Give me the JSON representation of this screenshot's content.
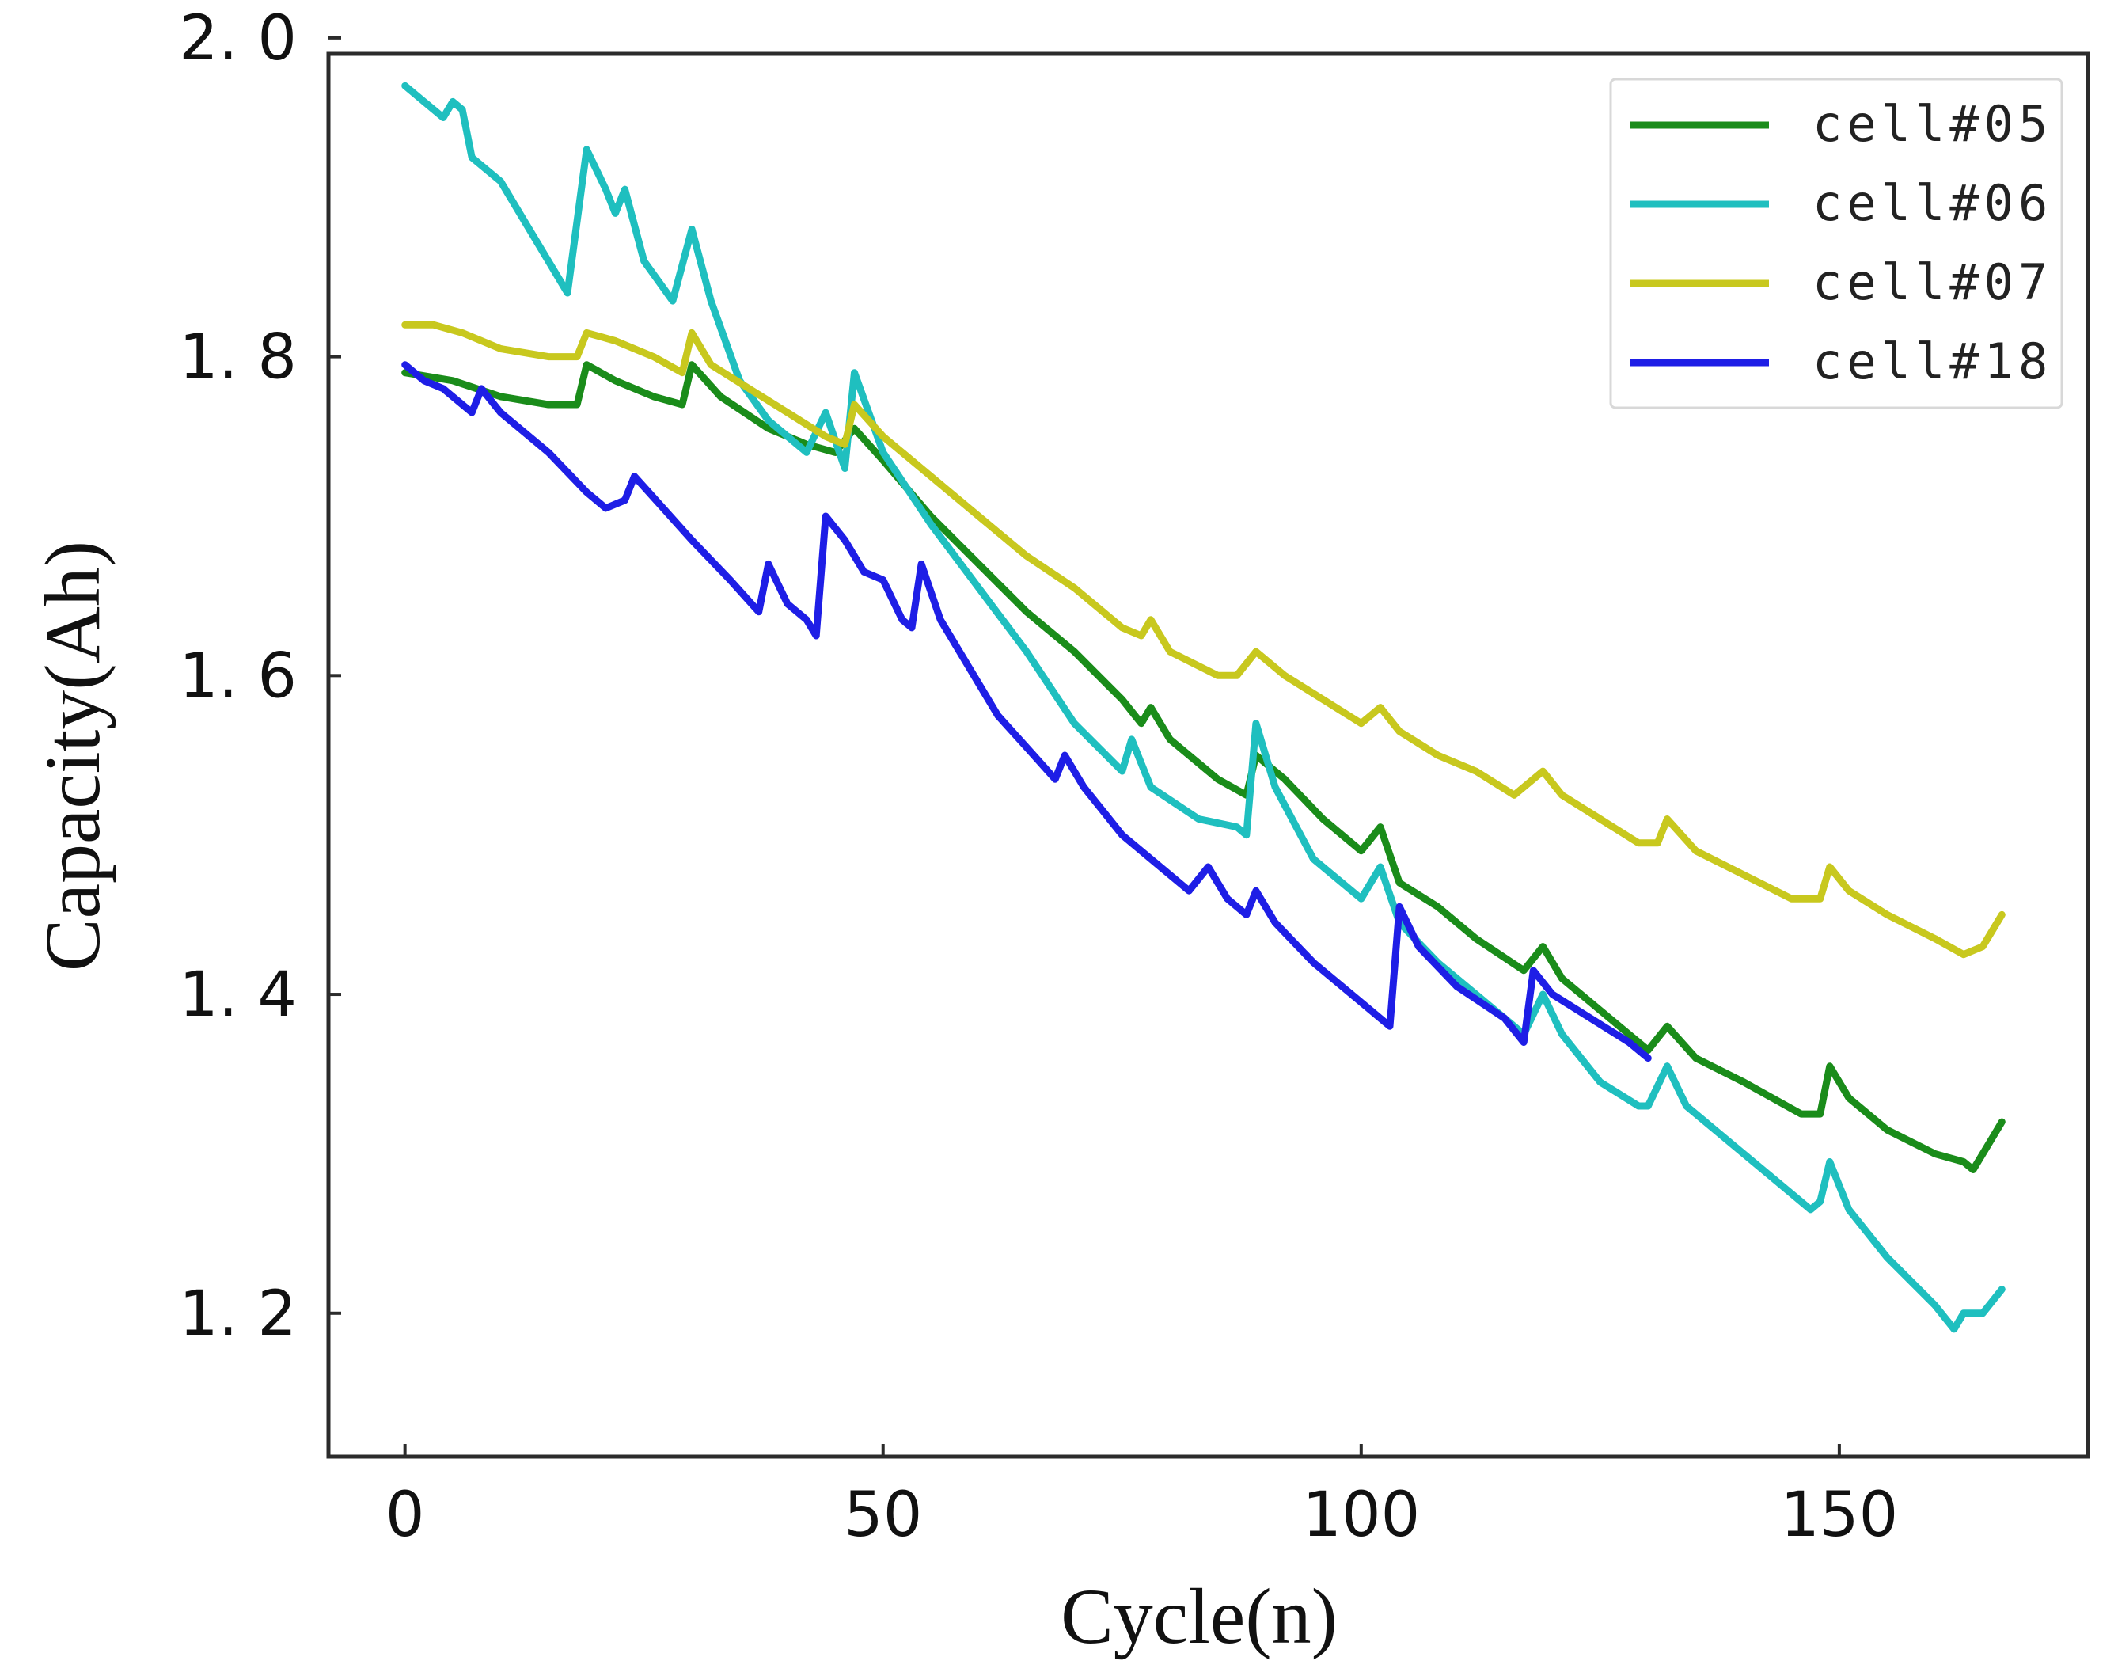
{
  "chart_data": {
    "type": "line",
    "title": "",
    "xlabel": "Cycle(n)",
    "ylabel": "Capacity(Ah)",
    "xlim": [
      -8,
      176
    ],
    "ylim": [
      1.11,
      1.99
    ],
    "xticks": [
      0,
      50,
      100,
      150
    ],
    "yticks": [
      1.2,
      1.4,
      1.6,
      1.8,
      2.0
    ],
    "xtick_labels": [
      "0",
      "50",
      "100",
      "150"
    ],
    "ytick_labels": [
      "1. 2",
      "1. 4",
      "1. 6",
      "1. 8",
      "2. 0"
    ],
    "legend_position": "top-right",
    "series": [
      {
        "name": "cell#05",
        "color": "#1a8c1a",
        "points": [
          [
            0,
            1.79
          ],
          [
            5,
            1.785
          ],
          [
            10,
            1.775
          ],
          [
            15,
            1.77
          ],
          [
            18,
            1.77
          ],
          [
            19,
            1.795
          ],
          [
            22,
            1.785
          ],
          [
            26,
            1.775
          ],
          [
            29,
            1.77
          ],
          [
            30,
            1.795
          ],
          [
            33,
            1.775
          ],
          [
            38,
            1.755
          ],
          [
            42,
            1.745
          ],
          [
            45,
            1.74
          ],
          [
            47,
            1.755
          ],
          [
            50,
            1.735
          ],
          [
            55,
            1.7
          ],
          [
            60,
            1.67
          ],
          [
            65,
            1.64
          ],
          [
            70,
            1.615
          ],
          [
            75,
            1.585
          ],
          [
            77,
            1.57
          ],
          [
            78,
            1.58
          ],
          [
            80,
            1.56
          ],
          [
            85,
            1.535
          ],
          [
            88,
            1.525
          ],
          [
            89,
            1.55
          ],
          [
            92,
            1.535
          ],
          [
            96,
            1.51
          ],
          [
            100,
            1.49
          ],
          [
            102,
            1.505
          ],
          [
            104,
            1.47
          ],
          [
            108,
            1.455
          ],
          [
            112,
            1.435
          ],
          [
            117,
            1.415
          ],
          [
            119,
            1.43
          ],
          [
            121,
            1.41
          ],
          [
            125,
            1.39
          ],
          [
            130,
            1.365
          ],
          [
            132,
            1.38
          ],
          [
            135,
            1.36
          ],
          [
            140,
            1.345
          ],
          [
            146,
            1.325
          ],
          [
            148,
            1.325
          ],
          [
            149,
            1.355
          ],
          [
            151,
            1.335
          ],
          [
            155,
            1.315
          ],
          [
            160,
            1.3
          ],
          [
            163,
            1.295
          ],
          [
            164,
            1.29
          ],
          [
            166,
            1.31
          ],
          [
            167,
            1.32
          ]
        ]
      },
      {
        "name": "cell#06",
        "color": "#1fbfbf",
        "points": [
          [
            0,
            1.97
          ],
          [
            2,
            1.96
          ],
          [
            4,
            1.95
          ],
          [
            5,
            1.96
          ],
          [
            6,
            1.955
          ],
          [
            7,
            1.925
          ],
          [
            10,
            1.91
          ],
          [
            15,
            1.86
          ],
          [
            17,
            1.84
          ],
          [
            19,
            1.93
          ],
          [
            21,
            1.905
          ],
          [
            22,
            1.89
          ],
          [
            23,
            1.905
          ],
          [
            25,
            1.86
          ],
          [
            28,
            1.835
          ],
          [
            30,
            1.88
          ],
          [
            32,
            1.835
          ],
          [
            35,
            1.785
          ],
          [
            38,
            1.76
          ],
          [
            42,
            1.74
          ],
          [
            44,
            1.765
          ],
          [
            46,
            1.73
          ],
          [
            47,
            1.79
          ],
          [
            50,
            1.74
          ],
          [
            55,
            1.695
          ],
          [
            60,
            1.655
          ],
          [
            65,
            1.615
          ],
          [
            70,
            1.57
          ],
          [
            75,
            1.54
          ],
          [
            76,
            1.56
          ],
          [
            78,
            1.53
          ],
          [
            83,
            1.51
          ],
          [
            87,
            1.505
          ],
          [
            88,
            1.5
          ],
          [
            89,
            1.57
          ],
          [
            91,
            1.53
          ],
          [
            95,
            1.485
          ],
          [
            100,
            1.46
          ],
          [
            102,
            1.48
          ],
          [
            104,
            1.445
          ],
          [
            108,
            1.42
          ],
          [
            112,
            1.4
          ],
          [
            117,
            1.375
          ],
          [
            119,
            1.4
          ],
          [
            121,
            1.375
          ],
          [
            125,
            1.345
          ],
          [
            129,
            1.33
          ],
          [
            130,
            1.33
          ],
          [
            132,
            1.355
          ],
          [
            134,
            1.33
          ],
          [
            138,
            1.31
          ],
          [
            143,
            1.285
          ],
          [
            147,
            1.265
          ],
          [
            148,
            1.27
          ],
          [
            149,
            1.295
          ],
          [
            151,
            1.265
          ],
          [
            155,
            1.235
          ],
          [
            160,
            1.205
          ],
          [
            162,
            1.19
          ],
          [
            163,
            1.2
          ],
          [
            165,
            1.2
          ],
          [
            167,
            1.215
          ]
        ]
      },
      {
        "name": "cell#07",
        "color": "#c8c81e",
        "points": [
          [
            0,
            1.82
          ],
          [
            3,
            1.82
          ],
          [
            6,
            1.815
          ],
          [
            10,
            1.805
          ],
          [
            15,
            1.8
          ],
          [
            18,
            1.8
          ],
          [
            19,
            1.815
          ],
          [
            22,
            1.81
          ],
          [
            26,
            1.8
          ],
          [
            29,
            1.79
          ],
          [
            30,
            1.815
          ],
          [
            32,
            1.795
          ],
          [
            36,
            1.78
          ],
          [
            40,
            1.765
          ],
          [
            44,
            1.75
          ],
          [
            46,
            1.745
          ],
          [
            47,
            1.77
          ],
          [
            50,
            1.75
          ],
          [
            55,
            1.725
          ],
          [
            60,
            1.7
          ],
          [
            65,
            1.675
          ],
          [
            70,
            1.655
          ],
          [
            75,
            1.63
          ],
          [
            77,
            1.625
          ],
          [
            78,
            1.635
          ],
          [
            80,
            1.615
          ],
          [
            85,
            1.6
          ],
          [
            87,
            1.6
          ],
          [
            89,
            1.615
          ],
          [
            92,
            1.6
          ],
          [
            96,
            1.585
          ],
          [
            100,
            1.57
          ],
          [
            102,
            1.58
          ],
          [
            104,
            1.565
          ],
          [
            108,
            1.55
          ],
          [
            112,
            1.54
          ],
          [
            116,
            1.525
          ],
          [
            119,
            1.54
          ],
          [
            121,
            1.525
          ],
          [
            125,
            1.51
          ],
          [
            129,
            1.495
          ],
          [
            131,
            1.495
          ],
          [
            132,
            1.51
          ],
          [
            135,
            1.49
          ],
          [
            140,
            1.475
          ],
          [
            145,
            1.46
          ],
          [
            148,
            1.46
          ],
          [
            149,
            1.48
          ],
          [
            151,
            1.465
          ],
          [
            155,
            1.45
          ],
          [
            160,
            1.435
          ],
          [
            163,
            1.425
          ],
          [
            165,
            1.43
          ],
          [
            166,
            1.44
          ],
          [
            167,
            1.45
          ]
        ]
      },
      {
        "name": "cell#18",
        "color": "#1e1ee6",
        "points": [
          [
            0,
            1.795
          ],
          [
            2,
            1.785
          ],
          [
            4,
            1.78
          ],
          [
            7,
            1.765
          ],
          [
            8,
            1.78
          ],
          [
            10,
            1.765
          ],
          [
            15,
            1.74
          ],
          [
            19,
            1.715
          ],
          [
            21,
            1.705
          ],
          [
            23,
            1.71
          ],
          [
            24,
            1.725
          ],
          [
            27,
            1.705
          ],
          [
            30,
            1.685
          ],
          [
            34,
            1.66
          ],
          [
            37,
            1.64
          ],
          [
            38,
            1.67
          ],
          [
            40,
            1.645
          ],
          [
            42,
            1.635
          ],
          [
            43,
            1.625
          ],
          [
            44,
            1.7
          ],
          [
            46,
            1.685
          ],
          [
            48,
            1.665
          ],
          [
            50,
            1.66
          ],
          [
            52,
            1.635
          ],
          [
            53,
            1.63
          ],
          [
            54,
            1.67
          ],
          [
            56,
            1.635
          ],
          [
            59,
            1.605
          ],
          [
            62,
            1.575
          ],
          [
            65,
            1.555
          ],
          [
            68,
            1.535
          ],
          [
            69,
            1.55
          ],
          [
            71,
            1.53
          ],
          [
            75,
            1.5
          ],
          [
            79,
            1.48
          ],
          [
            82,
            1.465
          ],
          [
            84,
            1.48
          ],
          [
            86,
            1.46
          ],
          [
            88,
            1.45
          ],
          [
            89,
            1.465
          ],
          [
            91,
            1.445
          ],
          [
            95,
            1.42
          ],
          [
            100,
            1.395
          ],
          [
            103,
            1.38
          ],
          [
            104,
            1.455
          ],
          [
            106,
            1.43
          ],
          [
            110,
            1.405
          ],
          [
            115,
            1.385
          ],
          [
            117,
            1.37
          ],
          [
            118,
            1.415
          ],
          [
            120,
            1.4
          ],
          [
            124,
            1.385
          ],
          [
            128,
            1.37
          ],
          [
            130,
            1.36
          ]
        ]
      }
    ]
  }
}
